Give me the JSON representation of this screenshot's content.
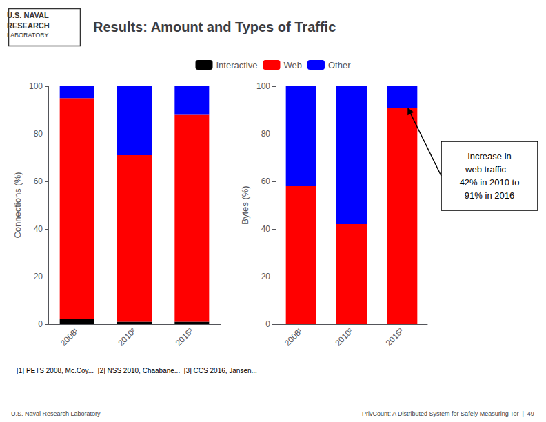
{
  "title": "Results: Amount and Types of Traffic",
  "logo": [
    "U.S. NAVAL",
    "RESEARCH",
    "LABORATORY"
  ],
  "legend": "top",
  "annotations": [
    "Increase in\nweb traffic –\n42% in 2010 to\n91% in 2016"
  ],
  "footnote": "[1] PETS 2008, Mc.Coy...  [2] NSS 2010, Chaabane...  [3] CCS 2016, Jansen...",
  "footer": [
    "U.S. Naval Research Laboratory",
    "PrivCount: A Distributed System for Safely Measuring Tor  |  49"
  ],
  "chart_data": [
    {
      "type": "bar",
      "stacked": true,
      "grid": false,
      "categories": [
        "2008¹",
        "2010²",
        "2016³"
      ],
      "ylabel": "Connections (%)",
      "ylim": [
        0,
        100
      ],
      "yticks": [
        0,
        20,
        40,
        60,
        80,
        100
      ],
      "series": [
        {
          "name": "Interactive",
          "color": "#000000",
          "values": [
            2,
            1,
            1
          ]
        },
        {
          "name": "Web",
          "color": "#FF0000",
          "values": [
            93,
            70,
            87
          ]
        },
        {
          "name": "Other",
          "color": "#0000FF",
          "values": [
            5,
            29,
            12
          ]
        }
      ]
    },
    {
      "type": "bar",
      "stacked": true,
      "grid": false,
      "categories": [
        "2008¹",
        "2010²",
        "2016³"
      ],
      "ylabel": "Bytes (%)",
      "ylim": [
        0,
        100
      ],
      "yticks": [
        0,
        20,
        40,
        60,
        80,
        100
      ],
      "series": [
        {
          "name": "Interactive",
          "color": "#000000",
          "values": [
            0,
            0,
            0
          ]
        },
        {
          "name": "Web",
          "color": "#FF0000",
          "values": [
            58,
            42,
            91
          ]
        },
        {
          "name": "Other",
          "color": "#0000FF",
          "values": [
            42,
            58,
            9
          ]
        }
      ]
    }
  ]
}
